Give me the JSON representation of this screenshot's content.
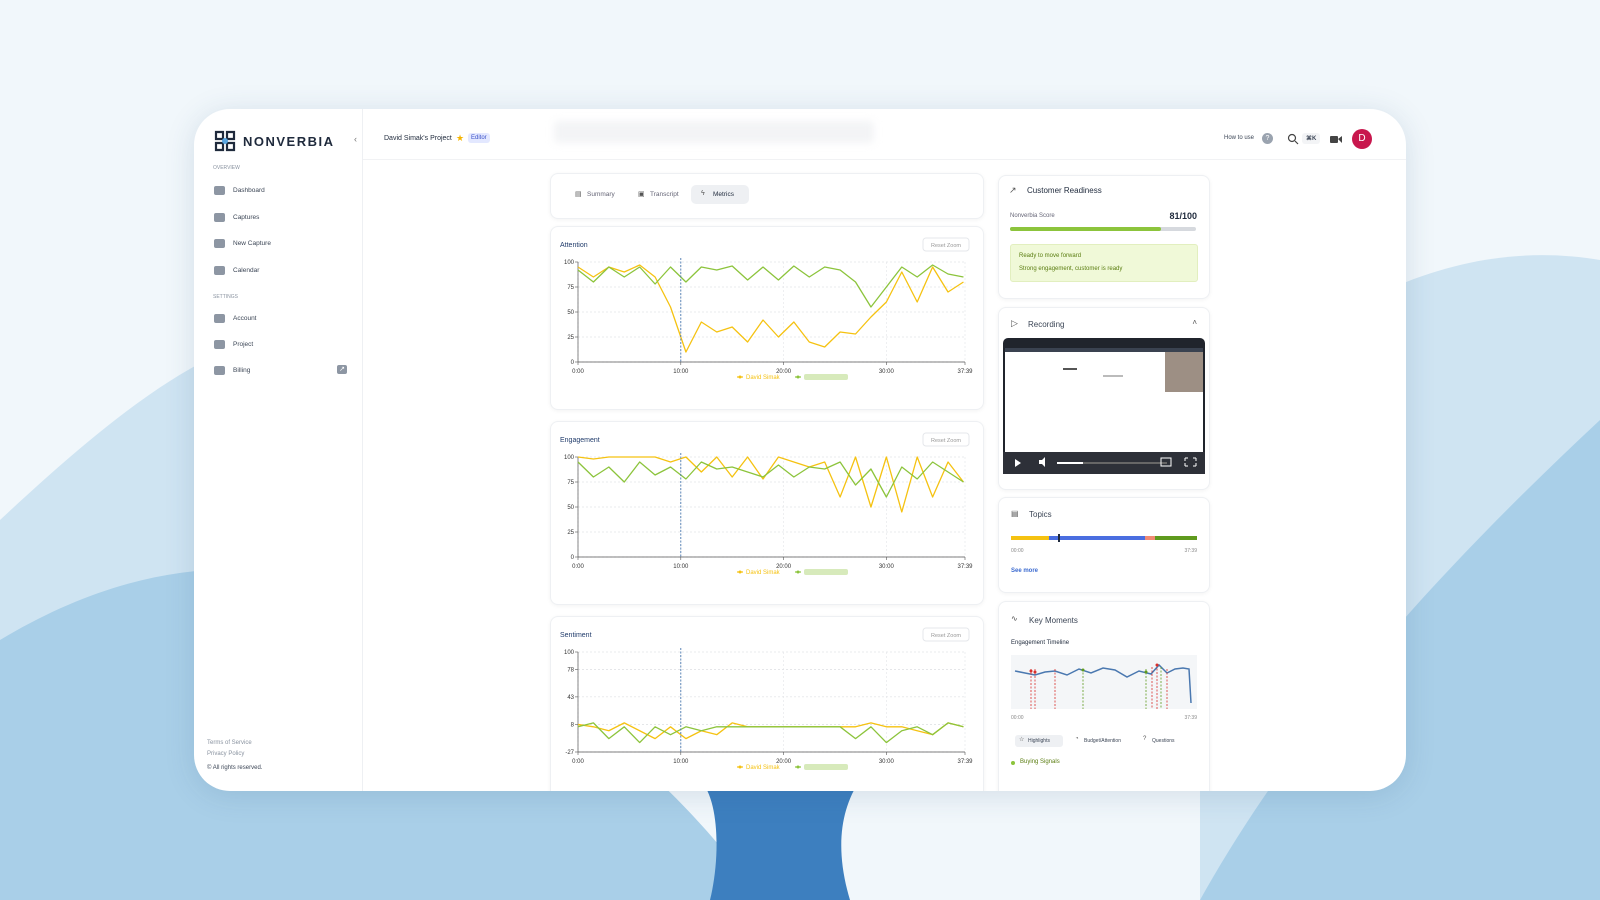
{
  "header": {
    "logo": "NONVERBIA",
    "project": "David Simak's Project",
    "role": "Editor",
    "help": "How to use",
    "help_icon": "?",
    "shortcut": "⌘K",
    "avatar": "D"
  },
  "sidebar": {
    "overview_label": "OVERVIEW",
    "overview_items": [
      "Dashboard",
      "Captures",
      "New Capture",
      "Calendar"
    ],
    "settings_label": "SETTINGS",
    "settings_items": [
      "Account",
      "Project",
      "Billing"
    ],
    "footer": [
      "Terms of Service",
      "Privacy Policy",
      "© All rights reserved."
    ]
  },
  "tabs": [
    "Summary",
    "Transcript",
    "Metrics"
  ],
  "active_tab": 2,
  "chart_data": [
    {
      "type": "line",
      "title": "Attention",
      "button": "Reset Zoom",
      "x": [
        0,
        1.5,
        3,
        4.5,
        6,
        7.5,
        9,
        10.5,
        12,
        13.5,
        15,
        16.5,
        18,
        19.5,
        21,
        22.5,
        24,
        25.5,
        27,
        28.5,
        30,
        31.5,
        33,
        34.5,
        36,
        37.5
      ],
      "xlim": [
        0,
        37.65
      ],
      "xticks": [
        {
          "value": 0,
          "label": "0:00"
        },
        {
          "value": 10,
          "label": "10:00"
        },
        {
          "value": 20,
          "label": "20:00"
        },
        {
          "value": 30,
          "label": "30:00"
        },
        {
          "value": 37.65,
          "label": "37:39"
        }
      ],
      "ylim": [
        0,
        100
      ],
      "yticks": [
        0,
        25,
        50,
        75,
        100
      ],
      "grid": true,
      "marker_x": 10,
      "series": [
        {
          "name": "David Simak",
          "color": "#f5c211",
          "values": [
            95,
            85,
            95,
            90,
            97,
            85,
            55,
            10,
            40,
            30,
            35,
            20,
            42,
            25,
            40,
            20,
            15,
            30,
            28,
            45,
            60,
            90,
            60,
            95,
            70,
            80
          ]
        },
        {
          "color": "#8cc43c",
          "values": [
            92,
            80,
            95,
            85,
            95,
            78,
            95,
            80,
            95,
            92,
            96,
            82,
            95,
            82,
            96,
            85,
            95,
            92,
            80,
            55,
            75,
            95,
            85,
            97,
            88,
            85
          ]
        }
      ]
    },
    {
      "type": "line",
      "title": "Engagement",
      "button": "Reset Zoom",
      "x": [
        0,
        1.5,
        3,
        4.5,
        6,
        7.5,
        9,
        10.5,
        12,
        13.5,
        15,
        16.5,
        18,
        19.5,
        21,
        22.5,
        24,
        25.5,
        27,
        28.5,
        30,
        31.5,
        33,
        34.5,
        36,
        37.5
      ],
      "xlim": [
        0,
        37.65
      ],
      "xticks": [
        {
          "value": 0,
          "label": "0:00"
        },
        {
          "value": 10,
          "label": "10:00"
        },
        {
          "value": 20,
          "label": "20:00"
        },
        {
          "value": 30,
          "label": "30:00"
        },
        {
          "value": 37.65,
          "label": "37:39"
        }
      ],
      "ylim": [
        0,
        100
      ],
      "yticks": [
        0,
        25,
        50,
        75,
        100
      ],
      "grid": true,
      "marker_x": 10,
      "series": [
        {
          "name": "David Simak",
          "color": "#f5c211",
          "values": [
            100,
            98,
            100,
            100,
            100,
            100,
            95,
            100,
            85,
            100,
            80,
            100,
            78,
            100,
            95,
            90,
            95,
            60,
            100,
            50,
            100,
            45,
            100,
            60,
            95,
            75
          ]
        },
        {
          "color": "#8cc43c",
          "values": [
            95,
            80,
            90,
            75,
            95,
            82,
            90,
            78,
            95,
            88,
            90,
            85,
            80,
            92,
            80,
            90,
            88,
            95,
            72,
            88,
            60,
            90,
            78,
            95,
            85,
            75
          ]
        }
      ]
    },
    {
      "type": "line",
      "title": "Sentiment",
      "button": "Reset Zoom",
      "x": [
        0,
        1.5,
        3,
        4.5,
        6,
        7.5,
        9,
        10.5,
        12,
        13.5,
        15,
        16.5,
        18,
        19.5,
        21,
        22.5,
        24,
        25.5,
        27,
        28.5,
        30,
        31.5,
        33,
        34.5,
        36,
        37.5
      ],
      "xlim": [
        0,
        37.65
      ],
      "xticks": [
        {
          "value": 0,
          "label": "0:00"
        },
        {
          "value": 10,
          "label": "10:00"
        },
        {
          "value": 20,
          "label": "20:00"
        },
        {
          "value": 30,
          "label": "30:00"
        },
        {
          "value": 37.65,
          "label": "37:39"
        }
      ],
      "ylim": [
        -27,
        100
      ],
      "yticks": [
        -27,
        8,
        43,
        78,
        100
      ],
      "grid": true,
      "marker_x": 10,
      "series": [
        {
          "name": "David Simak",
          "color": "#f5c211",
          "values": [
            8,
            5,
            0,
            10,
            0,
            -10,
            5,
            -10,
            0,
            -5,
            10,
            5,
            5,
            5,
            5,
            5,
            5,
            5,
            5,
            10,
            5,
            5,
            0,
            -5,
            10,
            5
          ]
        },
        {
          "color": "#8cc43c",
          "values": [
            5,
            10,
            -10,
            5,
            -15,
            5,
            -5,
            5,
            0,
            5,
            5,
            5,
            5,
            5,
            5,
            5,
            5,
            5,
            -10,
            5,
            -15,
            0,
            5,
            -5,
            10,
            5
          ]
        }
      ]
    }
  ],
  "readiness": {
    "title": "Customer Readiness",
    "score_label": "Nonverbia Score",
    "score": 81,
    "score_text": "81/100",
    "score_max": 100,
    "status": "Ready to move forward",
    "status_detail": "Strong engagement, customer is ready"
  },
  "recording": {
    "title": "Recording"
  },
  "topics": {
    "title": "Topics",
    "start": "00:00",
    "end": "37:39",
    "link": "See more"
  },
  "key_moments": {
    "title": "Key Moments",
    "subtitle": "Engagement Timeline",
    "start": "00:00",
    "end": "37:39",
    "filters": [
      "Highlights",
      "Budget/Attention",
      "Questions"
    ],
    "category": "Buying Signals"
  }
}
